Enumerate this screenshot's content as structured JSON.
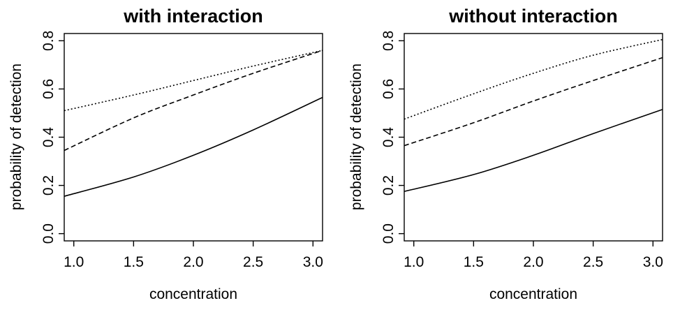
{
  "chart_data": [
    {
      "type": "line",
      "title": "with interaction",
      "xlabel": "concentration",
      "ylabel": "probability of detection",
      "xlim": [
        0.92,
        3.08
      ],
      "ylim": [
        -0.03,
        0.83
      ],
      "xticks": [
        "1.0",
        "1.5",
        "2.0",
        "2.5",
        "3.0"
      ],
      "yticks": [
        "0.0",
        "0.2",
        "0.4",
        "0.6",
        "0.8"
      ],
      "grid": false,
      "x": [
        0.92,
        1.5,
        2.0,
        2.5,
        3.08
      ],
      "series": [
        {
          "style": "solid",
          "values": [
            0.155,
            0.235,
            0.325,
            0.43,
            0.565
          ]
        },
        {
          "style": "dashed",
          "values": [
            0.345,
            0.48,
            0.575,
            0.665,
            0.76
          ]
        },
        {
          "style": "dotted",
          "values": [
            0.51,
            0.575,
            0.635,
            0.695,
            0.76
          ]
        }
      ]
    },
    {
      "type": "line",
      "title": "without interaction",
      "xlabel": "concentration",
      "ylabel": "probability of detection",
      "xlim": [
        0.92,
        3.08
      ],
      "ylim": [
        -0.03,
        0.83
      ],
      "xticks": [
        "1.0",
        "1.5",
        "2.0",
        "2.5",
        "3.0"
      ],
      "yticks": [
        "0.0",
        "0.2",
        "0.4",
        "0.6",
        "0.8"
      ],
      "grid": false,
      "x": [
        0.92,
        1.5,
        2.0,
        2.5,
        3.08
      ],
      "series": [
        {
          "style": "solid",
          "values": [
            0.175,
            0.245,
            0.325,
            0.415,
            0.515
          ]
        },
        {
          "style": "dashed",
          "values": [
            0.365,
            0.46,
            0.55,
            0.635,
            0.73
          ]
        },
        {
          "style": "dotted",
          "values": [
            0.475,
            0.58,
            0.665,
            0.74,
            0.805
          ]
        }
      ]
    }
  ]
}
